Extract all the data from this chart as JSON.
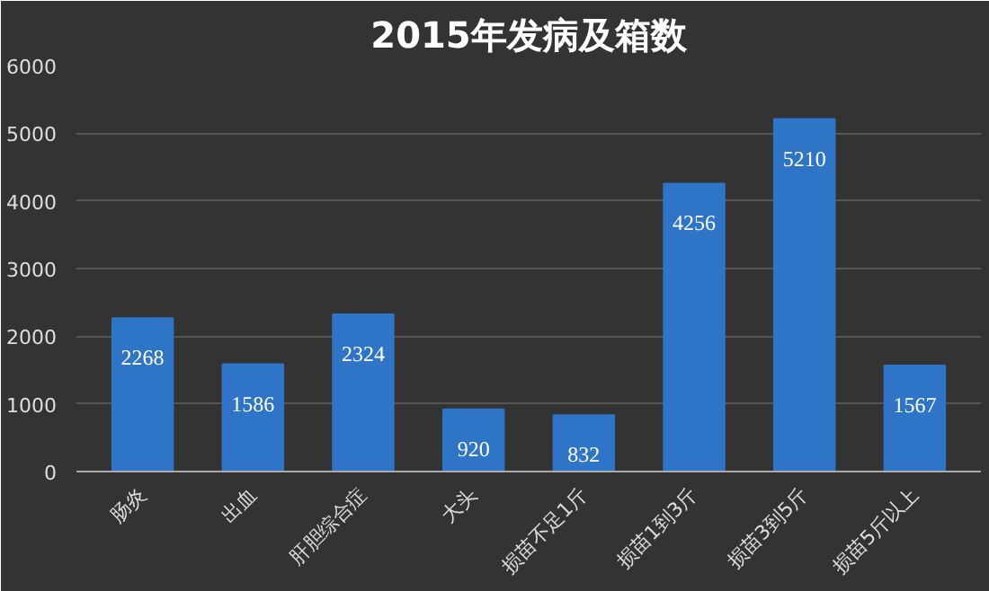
{
  "chart_data": {
    "type": "bar",
    "title": "2015年发病及箱数",
    "categories": [
      "肠炎",
      "出血",
      "肝胆综合症",
      "大头",
      "损苗不足1斤",
      "损苗1到3斤",
      "损苗3到5斤",
      "损苗5斤以上"
    ],
    "values": [
      2268,
      1586,
      2324,
      920,
      832,
      4256,
      5210,
      1567
    ],
    "color": "#2e75c8",
    "ylim": [
      0,
      6000
    ],
    "yticks": [
      0,
      1000,
      2000,
      3000,
      4000,
      5000,
      6000
    ],
    "grid": "y",
    "data_labels": true
  }
}
